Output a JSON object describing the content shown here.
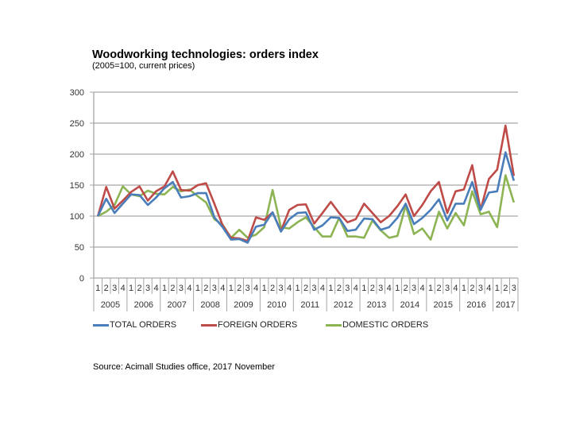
{
  "chart_data": {
    "type": "line",
    "title": "Woodworking technologies: orders index",
    "subtitle": "(2005=100, current prices)",
    "xlabel": "",
    "ylabel": "",
    "ylim": [
      0,
      300
    ],
    "yticks": [
      0,
      50,
      100,
      150,
      200,
      250,
      300
    ],
    "grid": true,
    "legend_position": "bottom",
    "years": [
      "2005",
      "2006",
      "2007",
      "2008",
      "2009",
      "2010",
      "2011",
      "2012",
      "2013",
      "2014",
      "2015",
      "2016",
      "2017"
    ],
    "quarters_per_year": [
      4,
      4,
      4,
      4,
      4,
      4,
      4,
      4,
      4,
      4,
      4,
      4,
      3
    ],
    "categories": [
      "2005 Q1",
      "2005 Q2",
      "2005 Q3",
      "2005 Q4",
      "2006 Q1",
      "2006 Q2",
      "2006 Q3",
      "2006 Q4",
      "2007 Q1",
      "2007 Q2",
      "2007 Q3",
      "2007 Q4",
      "2008 Q1",
      "2008 Q2",
      "2008 Q3",
      "2008 Q4",
      "2009 Q1",
      "2009 Q2",
      "2009 Q3",
      "2009 Q4",
      "2010 Q1",
      "2010 Q2",
      "2010 Q3",
      "2010 Q4",
      "2011 Q1",
      "2011 Q2",
      "2011 Q3",
      "2011 Q4",
      "2012 Q1",
      "2012 Q2",
      "2012 Q3",
      "2012 Q4",
      "2013 Q1",
      "2013 Q2",
      "2013 Q3",
      "2013 Q4",
      "2014 Q1",
      "2014 Q2",
      "2014 Q3",
      "2014 Q4",
      "2015 Q1",
      "2015 Q2",
      "2015 Q3",
      "2015 Q4",
      "2016 Q1",
      "2016 Q2",
      "2016 Q3",
      "2016 Q4",
      "2017 Q1",
      "2017 Q2",
      "2017 Q3"
    ],
    "series": [
      {
        "name": "TOTAL ORDERS",
        "color": "#4a7ebb",
        "values": [
          100,
          128,
          105,
          120,
          135,
          134,
          118,
          130,
          145,
          155,
          130,
          132,
          137,
          137,
          98,
          82,
          62,
          63,
          57,
          83,
          86,
          106,
          75,
          95,
          105,
          106,
          78,
          85,
          98,
          97,
          76,
          78,
          96,
          95,
          78,
          82,
          97,
          120,
          87,
          97,
          110,
          127,
          93,
          120,
          120,
          155,
          110,
          138,
          140,
          203,
          157
        ]
      },
      {
        "name": "FOREIGN ORDERS",
        "color": "#be4b48",
        "values": [
          100,
          147,
          112,
          125,
          139,
          148,
          125,
          140,
          148,
          172,
          142,
          141,
          150,
          153,
          120,
          85,
          65,
          64,
          60,
          98,
          94,
          106,
          76,
          110,
          118,
          119,
          88,
          105,
          123,
          105,
          90,
          95,
          120,
          105,
          90,
          100,
          116,
          135,
          100,
          118,
          140,
          155,
          105,
          140,
          143,
          182,
          110,
          160,
          175,
          246,
          165
        ]
      },
      {
        "name": "DOMESTIC ORDERS",
        "color": "#8cb453",
        "values": [
          100,
          107,
          118,
          148,
          135,
          132,
          141,
          136,
          135,
          147,
          140,
          143,
          132,
          122,
          95,
          86,
          65,
          78,
          65,
          70,
          82,
          142,
          82,
          80,
          90,
          98,
          82,
          67,
          67,
          97,
          67,
          67,
          65,
          93,
          77,
          65,
          68,
          117,
          71,
          80,
          62,
          107,
          80,
          105,
          85,
          140,
          103,
          107,
          82,
          166,
          122
        ]
      }
    ]
  },
  "header": {
    "title": "Woodworking technologies: orders index",
    "subtitle": "(2005=100, current prices)"
  },
  "legend": [
    {
      "label": "TOTAL ORDERS",
      "color": "#4a7ebb"
    },
    {
      "label": "FOREIGN ORDERS",
      "color": "#be4b48"
    },
    {
      "label": "DOMESTIC ORDERS",
      "color": "#8cb453"
    }
  ],
  "footer": {
    "source": "Source: Acimall Studies office, 2017 November"
  }
}
